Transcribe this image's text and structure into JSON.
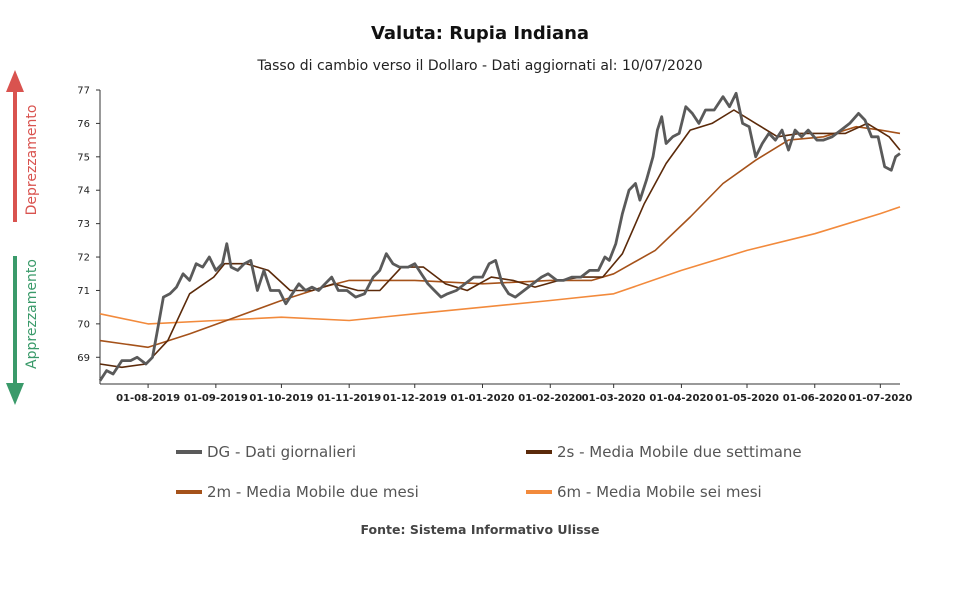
{
  "header": {
    "title": "Valuta: Rupia Indiana",
    "subtitle": "Tasso di cambio verso il Dollaro - Dati aggiornati al: 10/07/2020"
  },
  "side_labels": {
    "up": "Deprezzamento",
    "down": "Apprezzamento",
    "up_color": "#d9534f",
    "down_color": "#3a9a6a"
  },
  "footer": {
    "source": "Fonte: Sistema Informativo Ulisse"
  },
  "chart_data": {
    "type": "line",
    "title": "Valuta: Rupia Indiana",
    "subtitle": "Tasso di cambio verso il Dollaro - Dati aggiornati al: 10/07/2020",
    "xlabel": "",
    "ylabel": "",
    "xlim": [
      "2019-07-10",
      "2020-07-10"
    ],
    "ylim": [
      68.2,
      77
    ],
    "yticks": [
      69,
      70,
      71,
      72,
      73,
      74,
      75,
      76,
      77
    ],
    "xticks": [
      "01-08-2019",
      "01-09-2019",
      "01-10-2019",
      "01-11-2019",
      "01-12-2019",
      "01-01-2020",
      "01-02-2020",
      "01-03-2020",
      "01-04-2020",
      "01-05-2020",
      "01-06-2020",
      "01-07-2020"
    ],
    "grid": false,
    "legend_position": "bottom",
    "series": [
      {
        "name": "DG - Dati giornalieri",
        "color": "#5a5a5a",
        "points": [
          [
            "2019-07-10",
            68.3
          ],
          [
            "2019-07-13",
            68.6
          ],
          [
            "2019-07-16",
            68.5
          ],
          [
            "2019-07-20",
            68.9
          ],
          [
            "2019-07-24",
            68.9
          ],
          [
            "2019-07-27",
            69.0
          ],
          [
            "2019-07-31",
            68.8
          ],
          [
            "2019-08-03",
            69.0
          ],
          [
            "2019-08-05",
            69.7
          ],
          [
            "2019-08-08",
            70.8
          ],
          [
            "2019-08-11",
            70.9
          ],
          [
            "2019-08-14",
            71.1
          ],
          [
            "2019-08-17",
            71.5
          ],
          [
            "2019-08-20",
            71.3
          ],
          [
            "2019-08-23",
            71.8
          ],
          [
            "2019-08-26",
            71.7
          ],
          [
            "2019-08-29",
            72.0
          ],
          [
            "2019-09-01",
            71.6
          ],
          [
            "2019-09-04",
            71.8
          ],
          [
            "2019-09-06",
            72.4
          ],
          [
            "2019-09-08",
            71.7
          ],
          [
            "2019-09-11",
            71.6
          ],
          [
            "2019-09-14",
            71.8
          ],
          [
            "2019-09-17",
            71.9
          ],
          [
            "2019-09-20",
            71.0
          ],
          [
            "2019-09-23",
            71.6
          ],
          [
            "2019-09-26",
            71.0
          ],
          [
            "2019-09-30",
            71.0
          ],
          [
            "2019-10-03",
            70.6
          ],
          [
            "2019-10-06",
            70.9
          ],
          [
            "2019-10-09",
            71.2
          ],
          [
            "2019-10-12",
            71.0
          ],
          [
            "2019-10-15",
            71.1
          ],
          [
            "2019-10-18",
            71.0
          ],
          [
            "2019-10-21",
            71.2
          ],
          [
            "2019-10-24",
            71.4
          ],
          [
            "2019-10-27",
            71.0
          ],
          [
            "2019-10-31",
            71.0
          ],
          [
            "2019-11-04",
            70.8
          ],
          [
            "2019-11-08",
            70.9
          ],
          [
            "2019-11-12",
            71.4
          ],
          [
            "2019-11-15",
            71.6
          ],
          [
            "2019-11-18",
            72.1
          ],
          [
            "2019-11-21",
            71.8
          ],
          [
            "2019-11-24",
            71.7
          ],
          [
            "2019-11-28",
            71.7
          ],
          [
            "2019-12-01",
            71.8
          ],
          [
            "2019-12-04",
            71.5
          ],
          [
            "2019-12-07",
            71.2
          ],
          [
            "2019-12-10",
            71.0
          ],
          [
            "2019-12-13",
            70.8
          ],
          [
            "2019-12-16",
            70.9
          ],
          [
            "2019-12-20",
            71.0
          ],
          [
            "2019-12-24",
            71.2
          ],
          [
            "2019-12-28",
            71.4
          ],
          [
            "2020-01-01",
            71.4
          ],
          [
            "2020-01-04",
            71.8
          ],
          [
            "2020-01-07",
            71.9
          ],
          [
            "2020-01-10",
            71.2
          ],
          [
            "2020-01-13",
            70.9
          ],
          [
            "2020-01-16",
            70.8
          ],
          [
            "2020-01-20",
            71.0
          ],
          [
            "2020-01-24",
            71.2
          ],
          [
            "2020-01-28",
            71.4
          ],
          [
            "2020-01-31",
            71.5
          ],
          [
            "2020-02-04",
            71.3
          ],
          [
            "2020-02-07",
            71.3
          ],
          [
            "2020-02-11",
            71.4
          ],
          [
            "2020-02-15",
            71.4
          ],
          [
            "2020-02-19",
            71.6
          ],
          [
            "2020-02-23",
            71.6
          ],
          [
            "2020-02-26",
            72.0
          ],
          [
            "2020-02-28",
            71.9
          ],
          [
            "2020-03-02",
            72.4
          ],
          [
            "2020-03-05",
            73.3
          ],
          [
            "2020-03-08",
            74.0
          ],
          [
            "2020-03-11",
            74.2
          ],
          [
            "2020-03-13",
            73.7
          ],
          [
            "2020-03-16",
            74.3
          ],
          [
            "2020-03-19",
            75.0
          ],
          [
            "2020-03-21",
            75.8
          ],
          [
            "2020-03-23",
            76.2
          ],
          [
            "2020-03-25",
            75.4
          ],
          [
            "2020-03-28",
            75.6
          ],
          [
            "2020-03-31",
            75.7
          ],
          [
            "2020-04-03",
            76.5
          ],
          [
            "2020-04-06",
            76.3
          ],
          [
            "2020-04-09",
            76.0
          ],
          [
            "2020-04-12",
            76.4
          ],
          [
            "2020-04-16",
            76.4
          ],
          [
            "2020-04-20",
            76.8
          ],
          [
            "2020-04-23",
            76.5
          ],
          [
            "2020-04-26",
            76.9
          ],
          [
            "2020-04-29",
            76.0
          ],
          [
            "2020-05-02",
            75.9
          ],
          [
            "2020-05-05",
            75.0
          ],
          [
            "2020-05-08",
            75.4
          ],
          [
            "2020-05-11",
            75.7
          ],
          [
            "2020-05-14",
            75.5
          ],
          [
            "2020-05-17",
            75.8
          ],
          [
            "2020-05-20",
            75.2
          ],
          [
            "2020-05-23",
            75.8
          ],
          [
            "2020-05-26",
            75.6
          ],
          [
            "2020-05-29",
            75.8
          ],
          [
            "2020-06-02",
            75.5
          ],
          [
            "2020-06-05",
            75.5
          ],
          [
            "2020-06-09",
            75.6
          ],
          [
            "2020-06-13",
            75.8
          ],
          [
            "2020-06-17",
            76.0
          ],
          [
            "2020-06-21",
            76.3
          ],
          [
            "2020-06-24",
            76.1
          ],
          [
            "2020-06-27",
            75.6
          ],
          [
            "2020-06-30",
            75.6
          ],
          [
            "2020-07-03",
            74.7
          ],
          [
            "2020-07-06",
            74.6
          ],
          [
            "2020-07-08",
            75.0
          ],
          [
            "2020-07-10",
            75.1
          ]
        ]
      },
      {
        "name": "2s - Media Mobile due settimane",
        "color": "#5b2a0a",
        "points": [
          [
            "2019-07-10",
            68.8
          ],
          [
            "2019-07-20",
            68.7
          ],
          [
            "2019-07-31",
            68.8
          ],
          [
            "2019-08-10",
            69.5
          ],
          [
            "2019-08-20",
            70.9
          ],
          [
            "2019-08-31",
            71.4
          ],
          [
            "2019-09-05",
            71.8
          ],
          [
            "2019-09-15",
            71.8
          ],
          [
            "2019-09-25",
            71.6
          ],
          [
            "2019-10-05",
            71.0
          ],
          [
            "2019-10-15",
            71.0
          ],
          [
            "2019-10-25",
            71.2
          ],
          [
            "2019-11-05",
            71.0
          ],
          [
            "2019-11-15",
            71.0
          ],
          [
            "2019-11-25",
            71.7
          ],
          [
            "2019-12-05",
            71.7
          ],
          [
            "2019-12-15",
            71.2
          ],
          [
            "2019-12-25",
            71.0
          ],
          [
            "2020-01-05",
            71.4
          ],
          [
            "2020-01-15",
            71.3
          ],
          [
            "2020-01-25",
            71.1
          ],
          [
            "2020-02-05",
            71.3
          ],
          [
            "2020-02-15",
            71.4
          ],
          [
            "2020-02-25",
            71.4
          ],
          [
            "2020-03-05",
            72.1
          ],
          [
            "2020-03-15",
            73.6
          ],
          [
            "2020-03-25",
            74.8
          ],
          [
            "2020-04-05",
            75.8
          ],
          [
            "2020-04-15",
            76.0
          ],
          [
            "2020-04-25",
            76.4
          ],
          [
            "2020-05-05",
            76.0
          ],
          [
            "2020-05-15",
            75.6
          ],
          [
            "2020-05-25",
            75.7
          ],
          [
            "2020-06-05",
            75.7
          ],
          [
            "2020-06-15",
            75.7
          ],
          [
            "2020-06-25",
            76.0
          ],
          [
            "2020-07-05",
            75.6
          ],
          [
            "2020-07-10",
            75.2
          ]
        ]
      },
      {
        "name": "2m - Media Mobile due mesi",
        "color": "#a5521a",
        "points": [
          [
            "2019-07-10",
            69.5
          ],
          [
            "2019-08-01",
            69.3
          ],
          [
            "2019-08-20",
            69.7
          ],
          [
            "2019-09-10",
            70.2
          ],
          [
            "2019-10-01",
            70.7
          ],
          [
            "2019-10-20",
            71.1
          ],
          [
            "2019-11-01",
            71.3
          ],
          [
            "2019-12-01",
            71.3
          ],
          [
            "2020-01-01",
            71.2
          ],
          [
            "2020-02-01",
            71.3
          ],
          [
            "2020-02-20",
            71.3
          ],
          [
            "2020-03-01",
            71.5
          ],
          [
            "2020-03-20",
            72.2
          ],
          [
            "2020-04-05",
            73.2
          ],
          [
            "2020-04-20",
            74.2
          ],
          [
            "2020-05-05",
            74.9
          ],
          [
            "2020-05-20",
            75.5
          ],
          [
            "2020-06-05",
            75.6
          ],
          [
            "2020-06-20",
            75.9
          ],
          [
            "2020-07-01",
            75.8
          ],
          [
            "2020-07-10",
            75.7
          ]
        ]
      },
      {
        "name": "6m - Media Mobile sei mesi",
        "color": "#f28a3c",
        "points": [
          [
            "2019-07-10",
            70.3
          ],
          [
            "2019-08-01",
            70.0
          ],
          [
            "2019-09-01",
            70.1
          ],
          [
            "2019-10-01",
            70.2
          ],
          [
            "2019-11-01",
            70.1
          ],
          [
            "2019-12-01",
            70.3
          ],
          [
            "2020-01-01",
            70.5
          ],
          [
            "2020-02-01",
            70.7
          ],
          [
            "2020-03-01",
            70.9
          ],
          [
            "2020-04-01",
            71.6
          ],
          [
            "2020-05-01",
            72.2
          ],
          [
            "2020-06-01",
            72.7
          ],
          [
            "2020-07-01",
            73.3
          ],
          [
            "2020-07-10",
            73.5
          ]
        ]
      }
    ]
  }
}
